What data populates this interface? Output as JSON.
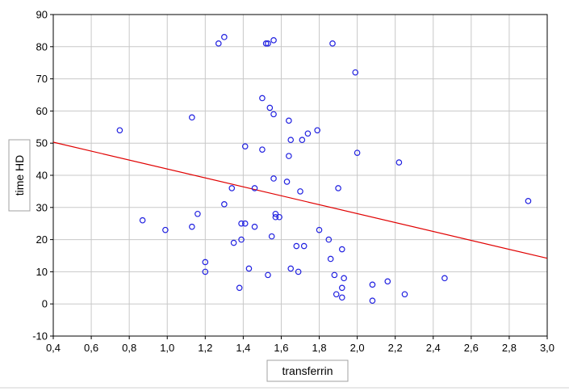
{
  "chart_data": {
    "type": "scatter",
    "xlabel": "transferrin",
    "ylabel": "time HD",
    "xlim": [
      0.4,
      3.0
    ],
    "ylim": [
      -10,
      90
    ],
    "x_ticks": [
      0.4,
      0.6,
      0.8,
      1.0,
      1.2,
      1.4,
      1.6,
      1.8,
      2.0,
      2.2,
      2.4,
      2.6,
      2.8,
      3.0
    ],
    "x_tick_labels": [
      "0,4",
      "0,6",
      "0,8",
      "1,0",
      "1,2",
      "1,4",
      "1,6",
      "1,8",
      "2,0",
      "2,2",
      "2,4",
      "2,6",
      "2,8",
      "3,0"
    ],
    "y_ticks": [
      -10,
      0,
      10,
      20,
      30,
      40,
      50,
      60,
      70,
      80,
      90
    ],
    "y_tick_labels": [
      "-10",
      "0",
      "10",
      "20",
      "30",
      "40",
      "50",
      "60",
      "70",
      "80",
      "90"
    ],
    "grid": true,
    "points": [
      [
        0.75,
        54
      ],
      [
        0.87,
        26
      ],
      [
        0.99,
        23
      ],
      [
        1.13,
        58
      ],
      [
        1.13,
        24
      ],
      [
        1.16,
        28
      ],
      [
        1.2,
        13
      ],
      [
        1.2,
        10
      ],
      [
        1.27,
        81
      ],
      [
        1.3,
        83
      ],
      [
        1.3,
        31
      ],
      [
        1.34,
        36
      ],
      [
        1.35,
        19
      ],
      [
        1.38,
        5
      ],
      [
        1.39,
        25
      ],
      [
        1.39,
        20
      ],
      [
        1.41,
        25
      ],
      [
        1.41,
        49
      ],
      [
        1.43,
        11
      ],
      [
        1.46,
        24
      ],
      [
        1.46,
        36
      ],
      [
        1.5,
        64
      ],
      [
        1.5,
        48
      ],
      [
        1.52,
        81
      ],
      [
        1.53,
        81
      ],
      [
        1.54,
        61
      ],
      [
        1.53,
        9
      ],
      [
        1.55,
        21
      ],
      [
        1.56,
        39
      ],
      [
        1.56,
        59
      ],
      [
        1.56,
        82
      ],
      [
        1.57,
        28
      ],
      [
        1.57,
        27
      ],
      [
        1.59,
        27
      ],
      [
        1.63,
        38
      ],
      [
        1.64,
        57
      ],
      [
        1.64,
        46
      ],
      [
        1.65,
        51
      ],
      [
        1.65,
        11
      ],
      [
        1.68,
        18
      ],
      [
        1.69,
        10
      ],
      [
        1.7,
        35
      ],
      [
        1.71,
        51
      ],
      [
        1.72,
        18
      ],
      [
        1.74,
        53
      ],
      [
        1.79,
        54
      ],
      [
        1.8,
        23
      ],
      [
        1.85,
        20
      ],
      [
        1.86,
        14
      ],
      [
        1.87,
        81
      ],
      [
        1.88,
        9
      ],
      [
        1.89,
        3
      ],
      [
        1.9,
        36
      ],
      [
        1.92,
        17
      ],
      [
        1.92,
        5
      ],
      [
        1.92,
        2
      ],
      [
        1.93,
        8
      ],
      [
        1.99,
        72
      ],
      [
        2.0,
        47
      ],
      [
        2.08,
        6
      ],
      [
        2.08,
        1
      ],
      [
        2.16,
        7
      ],
      [
        2.22,
        44
      ],
      [
        2.25,
        3
      ],
      [
        2.46,
        8
      ],
      [
        2.9,
        32
      ]
    ],
    "regression_line": [
      [
        0.4,
        50.3
      ],
      [
        3.0,
        14.2
      ]
    ],
    "point_color": "#2020e0",
    "line_color": "#e00000",
    "grid_color": "#c8c8c8"
  }
}
